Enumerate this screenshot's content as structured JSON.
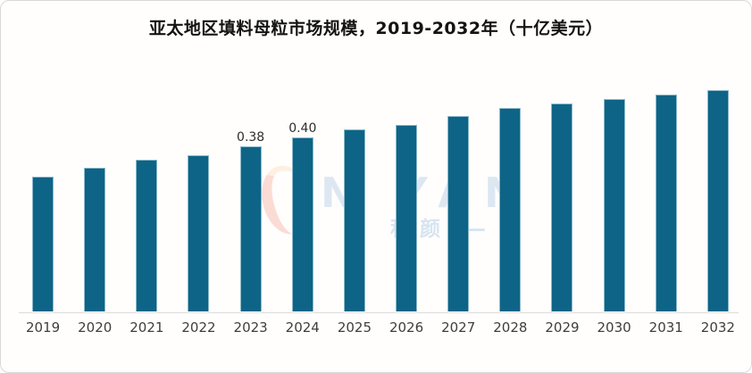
{
  "header": {
    "title": "亚太地区填料母粒市场规模，2019-2032年（十亿美元）"
  },
  "chart_data": {
    "type": "bar",
    "title": "亚太地区填料母粒市场规模，2019-2032年（十亿美元）",
    "categories": [
      "2019",
      "2020",
      "2021",
      "2022",
      "2023",
      "2024",
      "2025",
      "2026",
      "2027",
      "2028",
      "2029",
      "2030",
      "2031",
      "2032"
    ],
    "values": [
      0.31,
      0.33,
      0.35,
      0.36,
      0.38,
      0.4,
      0.42,
      0.43,
      0.45,
      0.47,
      0.48,
      0.49,
      0.5,
      0.51
    ],
    "point_labels": [
      "",
      "",
      "",
      "",
      "0.38",
      "0.40",
      "",
      "",
      "",
      "",
      "",
      "",
      "",
      ""
    ],
    "unit": "十亿美元",
    "xlabel": "",
    "ylabel": "",
    "ylim": [
      0,
      0.55
    ],
    "y_axis_visible": false,
    "grid": false,
    "legend": false,
    "bar_color": "#0e6486",
    "bar_edge_color": "#a0c7d6",
    "axis_line_color": "#dcdcdc",
    "label_color": "#2d2d2d",
    "tick_color": "#3e3e3e"
  },
  "watermark": {
    "text_main": "N YAN",
    "text_sub": "— 程颜 —",
    "color": "#7ba8d6"
  }
}
